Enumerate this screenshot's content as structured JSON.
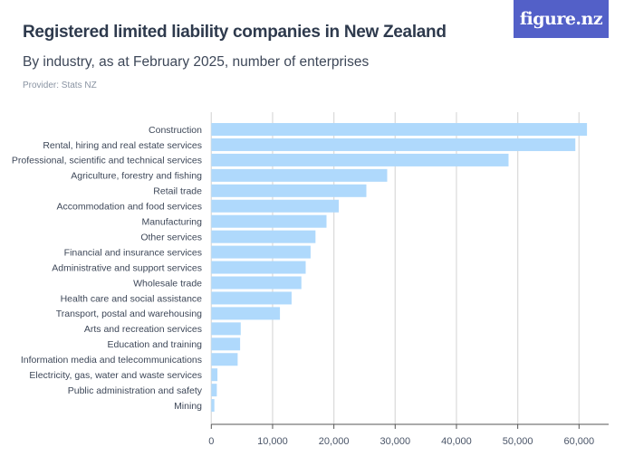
{
  "header": {
    "title": "Registered limited liability companies in New Zealand",
    "subtitle": "By industry, as at February 2025, number of enterprises",
    "provider": "Provider: Stats NZ",
    "logo_text": "figure.nz",
    "logo_color": "#5360c8"
  },
  "chart_data": {
    "type": "bar",
    "orientation": "horizontal",
    "title": "Registered limited liability companies in New Zealand",
    "subtitle": "By industry, as at February 2025, number of enterprises",
    "categories": [
      "Construction",
      "Rental, hiring and real estate services",
      "Professional, scientific and technical services",
      "Agriculture, forestry and fishing",
      "Retail trade",
      "Accommodation and food services",
      "Manufacturing",
      "Other services",
      "Financial and insurance services",
      "Administrative and support services",
      "Wholesale trade",
      "Health care and social assistance",
      "Transport, postal and warehousing",
      "Arts and recreation services",
      "Education and training",
      "Information media and telecommunications",
      "Electricity, gas, water and waste services",
      "Public administration and safety",
      "Mining"
    ],
    "values": [
      61300,
      59400,
      48500,
      28700,
      25300,
      20800,
      18800,
      17000,
      16200,
      15400,
      14700,
      13100,
      11200,
      4800,
      4700,
      4300,
      1000,
      900,
      500
    ],
    "xlim": [
      0,
      63000
    ],
    "xticks": [
      0,
      10000,
      20000,
      30000,
      40000,
      50000,
      60000
    ],
    "xtick_labels": [
      "0",
      "10,000",
      "20,000",
      "30,000",
      "40,000",
      "50,000",
      "60,000"
    ],
    "grid": true,
    "bar_color": "#afd9fc",
    "grid_color": "#dcdcdc"
  }
}
